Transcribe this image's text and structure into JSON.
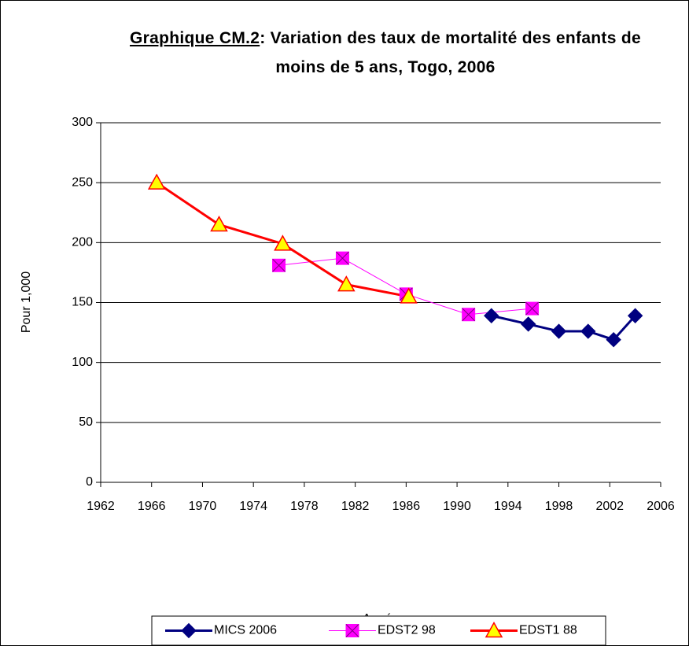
{
  "chart_data": {
    "type": "line",
    "title_label": "Graphique CM.2",
    "title": ": Variation des taux de mortalité des enfants de moins de 5 ans, Togo, 2006",
    "y_label": "Pour 1,000",
    "x_label": "Année",
    "xlim": [
      1962,
      2006
    ],
    "xticks": [
      1962,
      1966,
      1970,
      1974,
      1978,
      1982,
      1986,
      1990,
      1994,
      1998,
      2002,
      2006
    ],
    "ylim": [
      0,
      300
    ],
    "yticks": [
      0,
      50,
      100,
      150,
      200,
      250,
      300
    ],
    "grid": true,
    "legend": "bottom",
    "series": [
      {
        "name": "MICS 2006",
        "color": "#000080",
        "marker": "diamond",
        "x": [
          1992.7,
          1995.6,
          1998.0,
          2000.3,
          2002.3,
          2004.0
        ],
        "values": [
          139,
          132,
          126,
          126,
          119,
          139
        ]
      },
      {
        "name": "EDST2 98",
        "color": "#FF00FF",
        "marker": "square",
        "x": [
          1976.0,
          1981.0,
          1986.0,
          1990.9,
          1995.9
        ],
        "values": [
          181,
          187,
          157,
          140,
          145
        ]
      },
      {
        "name": "EDST1  88",
        "color": "#FF0000",
        "marker": "triangle",
        "x": [
          1966.4,
          1971.3,
          1976.3,
          1981.3,
          1986.2
        ],
        "values": [
          250,
          215,
          199,
          165,
          155
        ]
      }
    ]
  }
}
